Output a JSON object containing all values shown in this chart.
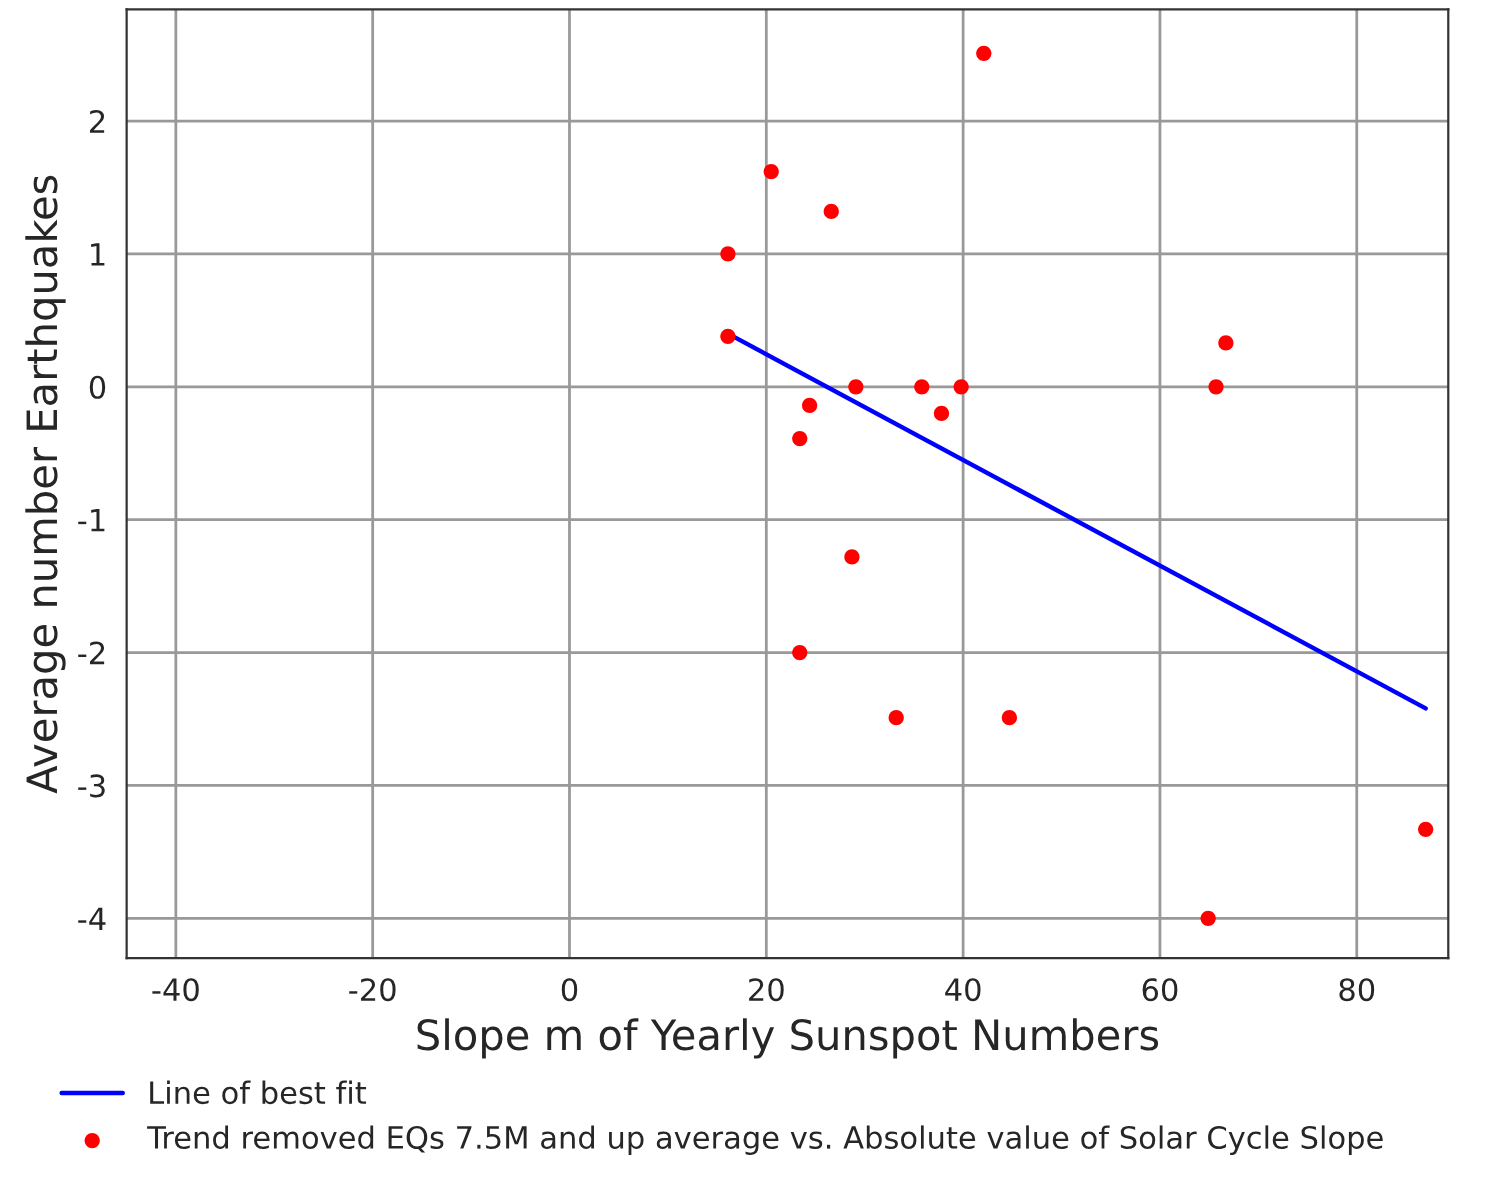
{
  "chart_data": {
    "type": "scatter",
    "xlabel": "Slope m of Yearly Sunspot Numbers",
    "ylabel": "Average number Earthquakes",
    "xlim": [
      -45,
      89.3
    ],
    "ylim": [
      -4.3,
      2.84
    ],
    "xticks": [
      -40,
      -20,
      0,
      20,
      40,
      60,
      80
    ],
    "yticks": [
      -4,
      -3,
      -2,
      -1,
      0,
      1,
      2
    ],
    "grid": true,
    "legend": "bottom",
    "series": [
      {
        "name": "Line of best fit",
        "type": "line",
        "color": "#0000ff",
        "x": [
          16.1,
          87.0
        ],
        "values": [
          0.4,
          -2.42
        ],
        "marker": "none"
      },
      {
        "name": "Trend removed EQs 7.5M and up average vs. Absolute value of Solar Cycle Slope",
        "color": "#ff0000",
        "marker": "circle",
        "x": [
          16.1,
          16.1,
          20.5,
          26.6,
          42.1,
          29.1,
          35.8,
          39.8,
          24.4,
          23.4,
          37.8,
          28.7,
          23.4,
          33.2,
          44.7,
          65.7,
          66.7,
          64.9,
          87.0
        ],
        "values": [
          1.0,
          0.38,
          1.62,
          1.32,
          2.51,
          0,
          0,
          0,
          -0.14,
          -0.39,
          -0.2,
          -1.28,
          -2.0,
          -2.49,
          -2.49,
          0,
          0.33,
          -4.0,
          -3.33
        ]
      }
    ]
  }
}
